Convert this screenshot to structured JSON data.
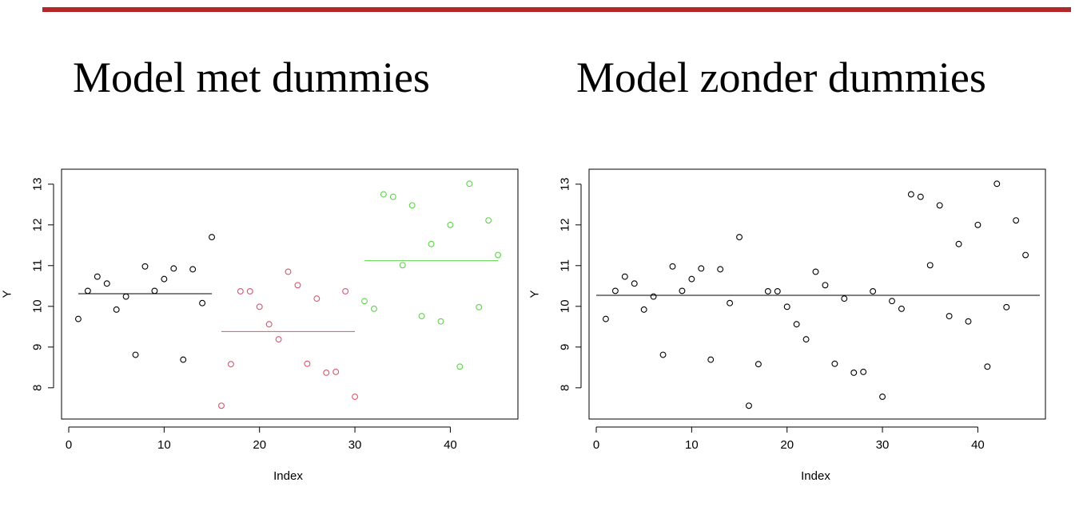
{
  "colors": {
    "rule": "#b3272a",
    "group1": "#000000",
    "group2": "#df536b",
    "group3": "#61d04f"
  },
  "chart_data": [
    {
      "type": "scatter",
      "title": "Model met dummies",
      "xlabel": "Index",
      "ylabel": "Y",
      "xlim": [
        0,
        46.5
      ],
      "ylim": [
        7.35,
        13.25
      ],
      "x_ticks": [
        0,
        10,
        20,
        30,
        40
      ],
      "y_ticks": [
        8,
        9,
        10,
        11,
        12,
        13
      ],
      "grid": false,
      "series": [
        {
          "color_key": "group1",
          "x": [
            1,
            2,
            3,
            4,
            5,
            6,
            7,
            8,
            9,
            10,
            11,
            12,
            13,
            14,
            15
          ],
          "y": [
            9.69,
            10.38,
            10.73,
            10.56,
            9.92,
            10.24,
            8.81,
            10.98,
            10.38,
            10.67,
            10.93,
            8.69,
            10.91,
            10.08,
            11.7
          ]
        },
        {
          "color_key": "group2",
          "x": [
            16,
            17,
            18,
            19,
            20,
            21,
            22,
            23,
            24,
            25,
            26,
            27,
            28,
            29,
            30
          ],
          "y": [
            7.56,
            8.58,
            10.37,
            10.37,
            9.99,
            9.56,
            9.19,
            10.85,
            10.52,
            8.59,
            10.19,
            8.37,
            8.39,
            10.37,
            7.78
          ]
        },
        {
          "color_key": "group3",
          "x": [
            31,
            32,
            33,
            34,
            35,
            36,
            37,
            38,
            39,
            40,
            41,
            42,
            43,
            44,
            45
          ],
          "y": [
            10.13,
            9.94,
            12.75,
            12.69,
            11.01,
            12.48,
            9.76,
            11.53,
            9.63,
            12.0,
            8.52,
            13.01,
            9.98,
            12.11,
            11.26
          ]
        }
      ],
      "lines": [
        {
          "color_key": "group1",
          "x": [
            1,
            15
          ],
          "y": [
            10.31,
            10.31
          ]
        },
        {
          "color_key": "group2",
          "x": [
            16,
            30
          ],
          "y": [
            9.38,
            9.38
          ]
        },
        {
          "color_key": "group3",
          "x": [
            31,
            45
          ],
          "y": [
            11.12,
            11.12
          ]
        }
      ]
    },
    {
      "type": "scatter",
      "title": "Model zonder dummies",
      "xlabel": "Index",
      "ylabel": "Y",
      "xlim": [
        0,
        46.5
      ],
      "ylim": [
        7.35,
        13.25
      ],
      "x_ticks": [
        0,
        10,
        20,
        30,
        40
      ],
      "y_ticks": [
        8,
        9,
        10,
        11,
        12,
        13
      ],
      "grid": false,
      "series": [
        {
          "color_key": "group1",
          "x": [
            1,
            2,
            3,
            4,
            5,
            6,
            7,
            8,
            9,
            10,
            11,
            12,
            13,
            14,
            15,
            16,
            17,
            18,
            19,
            20,
            21,
            22,
            23,
            24,
            25,
            26,
            27,
            28,
            29,
            30,
            31,
            32,
            33,
            34,
            35,
            36,
            37,
            38,
            39,
            40,
            41,
            42,
            43,
            44,
            45
          ],
          "y": [
            9.69,
            10.38,
            10.73,
            10.56,
            9.92,
            10.24,
            8.81,
            10.98,
            10.38,
            10.67,
            10.93,
            8.69,
            10.91,
            10.08,
            11.7,
            7.56,
            8.58,
            10.37,
            10.37,
            9.99,
            9.56,
            9.19,
            10.85,
            10.52,
            8.59,
            10.19,
            8.37,
            8.39,
            10.37,
            7.78,
            10.13,
            9.94,
            12.75,
            12.69,
            11.01,
            12.48,
            9.76,
            11.53,
            9.63,
            12.0,
            8.52,
            13.01,
            9.98,
            12.11,
            11.26
          ]
        }
      ],
      "lines": [
        {
          "color_key": "group1",
          "x": [
            0,
            46.5
          ],
          "y": [
            10.27,
            10.27
          ]
        }
      ]
    }
  ]
}
